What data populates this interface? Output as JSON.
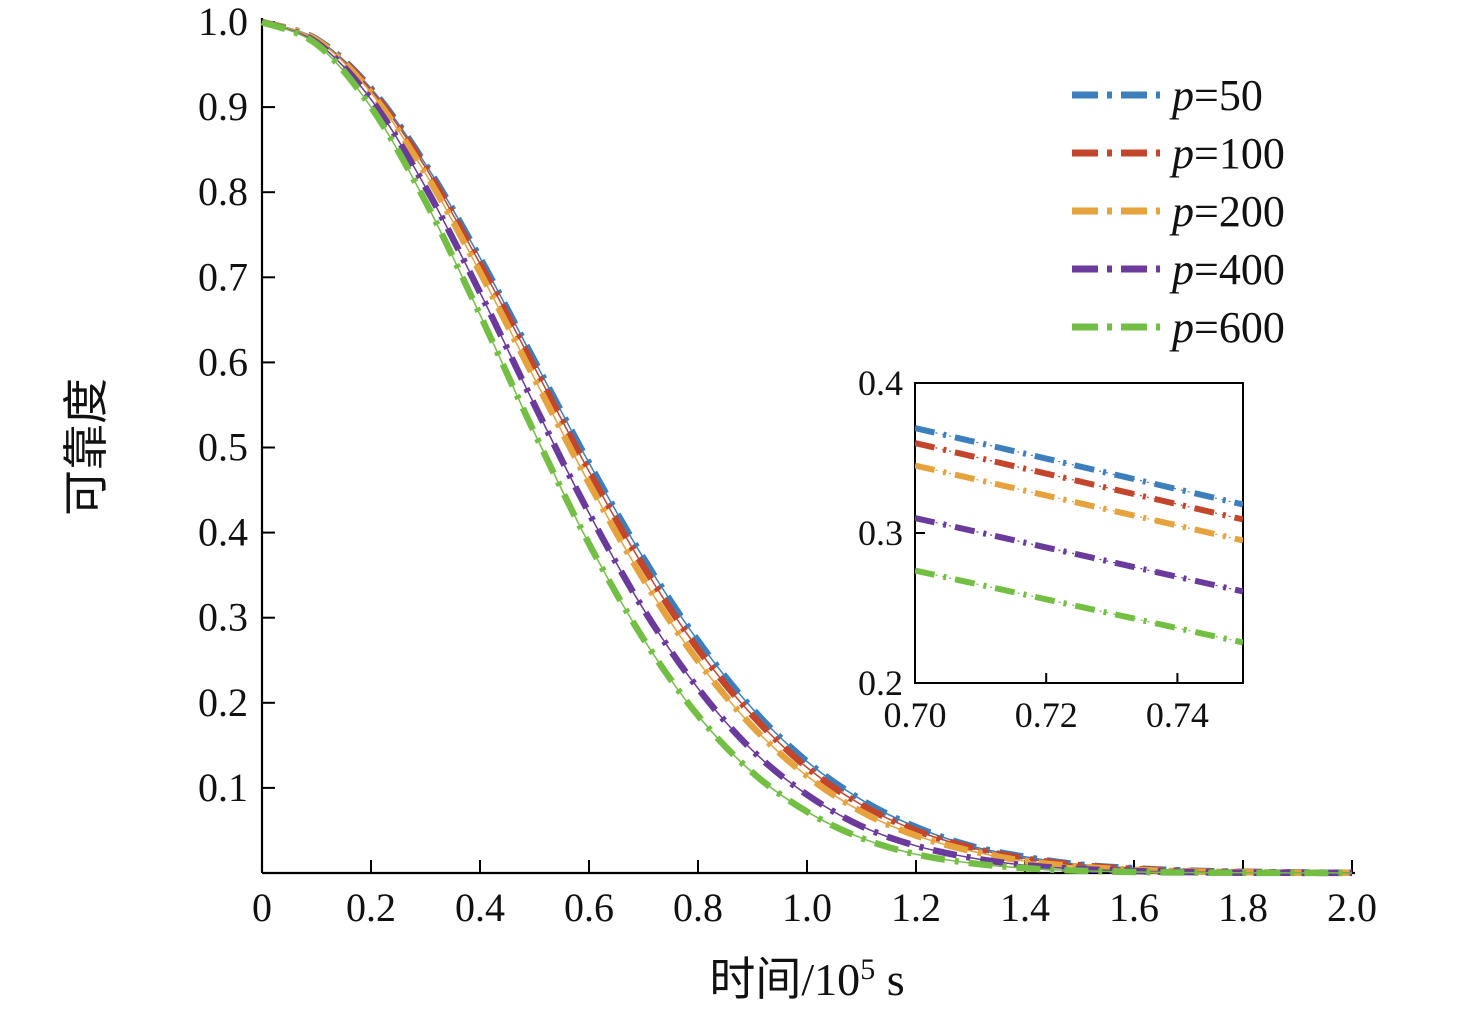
{
  "chart_data": {
    "type": "line",
    "title": "",
    "xlabel": "时间/10⁵ s",
    "xlabel_parts": [
      {
        "t": "时间/10",
        "sup": false
      },
      {
        "t": "5",
        "sup": true
      },
      {
        "t": " s",
        "sup": false
      }
    ],
    "ylabel": "可靠度",
    "xlim": [
      0,
      2.0
    ],
    "ylim": [
      0,
      1.0
    ],
    "grid": false,
    "legend_position": "upper right",
    "x_ticks": [
      0,
      0.2,
      0.4,
      0.6,
      0.8,
      1.0,
      1.2,
      1.4,
      1.6,
      1.8,
      2.0
    ],
    "x_tick_labels": [
      "0",
      "0.2",
      "0.4",
      "0.6",
      "0.8",
      "1.0",
      "1.2",
      "1.4",
      "1.6",
      "1.8",
      "2.0"
    ],
    "y_ticks": [
      0.1,
      0.2,
      0.3,
      0.4,
      0.5,
      0.6,
      0.7,
      0.8,
      0.9,
      1.0
    ],
    "y_tick_labels": [
      "0.1",
      "0.2",
      "0.3",
      "0.4",
      "0.5",
      "0.6",
      "0.7",
      "0.8",
      "0.9",
      "1.0"
    ],
    "x": [
      0,
      0.1,
      0.2,
      0.3,
      0.4,
      0.5,
      0.6,
      0.7,
      0.8,
      0.9,
      1.0,
      1.1,
      1.2,
      1.3,
      1.4,
      1.5,
      1.6,
      1.7,
      1.8,
      1.9,
      2.0
    ],
    "series": [
      {
        "name": "p=50",
        "label_italic": "p",
        "label_rest": "=50",
        "color": "#3d7ebc",
        "values": [
          1,
          0.98,
          0.922,
          0.833,
          0.723,
          0.602,
          0.482,
          0.37,
          0.273,
          0.193,
          0.131,
          0.086,
          0.054,
          0.032,
          0.019,
          0.01,
          0.0056,
          0.0028,
          0.0014,
          0.0007,
          0.0003
        ]
      },
      {
        "name": "p=100",
        "label_italic": "p",
        "label_rest": "=100",
        "color": "#c3452c",
        "values": [
          1,
          0.979,
          0.92,
          0.829,
          0.716,
          0.594,
          0.472,
          0.36,
          0.263,
          0.185,
          0.124,
          0.08,
          0.05,
          0.03,
          0.017,
          0.0092,
          0.0048,
          0.0024,
          0.0012,
          0.0005,
          0.0002
        ]
      },
      {
        "name": "p=200",
        "label_italic": "p",
        "label_rest": "=200",
        "color": "#e6a23c",
        "values": [
          1,
          0.979,
          0.917,
          0.822,
          0.706,
          0.581,
          0.458,
          0.345,
          0.249,
          0.172,
          0.114,
          0.072,
          0.044,
          0.026,
          0.014,
          0.0076,
          0.0038,
          0.0019,
          0.0009,
          0.0004,
          0.0002
        ]
      },
      {
        "name": "p=400",
        "label_italic": "p",
        "label_rest": "=400",
        "color": "#6a3a9c",
        "values": [
          1,
          0.976,
          0.909,
          0.806,
          0.682,
          0.55,
          0.423,
          0.31,
          0.217,
          0.144,
          0.092,
          0.055,
          0.032,
          0.018,
          0.0092,
          0.0046,
          0.0022,
          0.001,
          0.0004,
          0.0002,
          0.0001
        ]
      },
      {
        "name": "p=600",
        "label_italic": "p",
        "label_rest": "=600",
        "color": "#72bf44",
        "values": [
          1,
          0.974,
          0.9,
          0.789,
          0.656,
          0.517,
          0.387,
          0.275,
          0.185,
          0.118,
          0.072,
          0.041,
          0.022,
          0.0116,
          0.0057,
          0.0027,
          0.0012,
          0.0005,
          0.0002,
          0.0001,
          0
        ]
      }
    ],
    "inset": {
      "xlim": [
        0.7,
        0.75
      ],
      "ylim": [
        0.2,
        0.4
      ],
      "x_ticks": [
        0.7,
        0.72,
        0.74
      ],
      "x_tick_labels": [
        "0.70",
        "0.72",
        "0.74"
      ],
      "y_ticks": [
        0.2,
        0.3,
        0.4
      ],
      "y_tick_labels": [
        "0.2",
        "0.3",
        "0.4"
      ],
      "x": [
        0.7,
        0.75
      ],
      "series": [
        {
          "name": "p=50",
          "values": [
            0.37,
            0.319
          ]
        },
        {
          "name": "p=100",
          "values": [
            0.36,
            0.309
          ]
        },
        {
          "name": "p=200",
          "values": [
            0.345,
            0.295
          ]
        },
        {
          "name": "p=400",
          "values": [
            0.31,
            0.261
          ]
        },
        {
          "name": "p=600",
          "values": [
            0.275,
            0.227
          ]
        }
      ]
    }
  }
}
